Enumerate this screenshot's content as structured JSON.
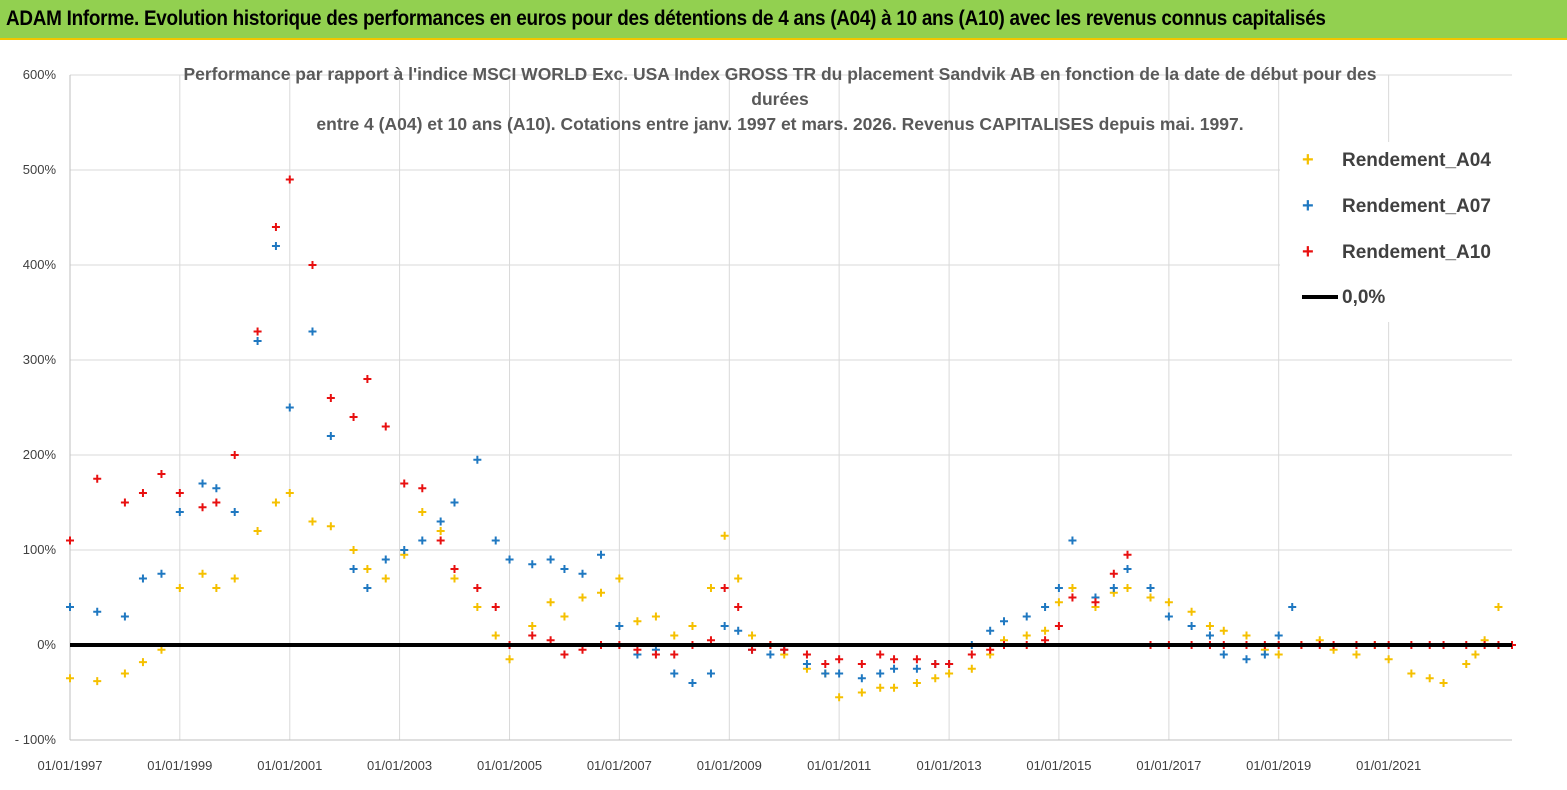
{
  "banner": {
    "title": "ADAM Informe. Evolution historique des performances en euros pour des détentions de 4 ans (A04) à 10 ans (A10) avec les revenus connus capitalisés"
  },
  "chart_data": {
    "type": "scatter",
    "title_lines": [
      "Performance par rapport à l'indice MSCI WORLD Exc. USA Index GROSS TR  du placement Sandvik AB en fonction de la date de début pour des",
      "durées",
      "entre 4 (A04) et 10 ans (A10). Cotations entre janv. 1997 et mars. 2026. Revenus CAPITALISES depuis mai. 1997."
    ],
    "xlabel": "",
    "ylabel": "",
    "x_tick_labels": [
      "01/01/1997",
      "01/01/1999",
      "01/01/2001",
      "01/01/2003",
      "01/01/2005",
      "01/01/2007",
      "01/01/2009",
      "01/01/2011",
      "01/01/2013",
      "01/01/2015",
      "01/01/2017",
      "01/01/2019",
      "01/01/2021"
    ],
    "x_range": [
      "1997-01-01",
      "2023-04-01"
    ],
    "y_tick_labels": [
      "- 100%",
      "0%",
      "100%",
      "200%",
      "300%",
      "400%",
      "500%",
      "600%"
    ],
    "ylim": [
      -100,
      600
    ],
    "y_unit": "%",
    "grid": true,
    "legend_position": "right",
    "series": [
      {
        "name": "Rendement_A04",
        "color": "#f5c000",
        "marker": "+",
        "x": [
          "1997-01",
          "1997-07",
          "1998-01",
          "1998-05",
          "1998-09",
          "1999-01",
          "1999-06",
          "1999-09",
          "2000-01",
          "2000-06",
          "2000-10",
          "2001-01",
          "2001-06",
          "2001-10",
          "2002-03",
          "2002-06",
          "2002-10",
          "2003-02",
          "2003-06",
          "2003-10",
          "2004-01",
          "2004-06",
          "2004-10",
          "2005-01",
          "2005-06",
          "2005-10",
          "2006-01",
          "2006-05",
          "2006-09",
          "2007-01",
          "2007-05",
          "2007-09",
          "2008-01",
          "2008-05",
          "2008-09",
          "2008-12",
          "2009-03",
          "2009-06",
          "2009-10",
          "2010-01",
          "2010-06",
          "2010-10",
          "2011-01",
          "2011-06",
          "2011-10",
          "2012-01",
          "2012-06",
          "2012-10",
          "2013-01",
          "2013-06",
          "2013-10",
          "2014-01",
          "2014-06",
          "2014-10",
          "2015-01",
          "2015-04",
          "2015-09",
          "2016-01",
          "2016-04",
          "2016-09",
          "2017-01",
          "2017-06",
          "2017-10",
          "2018-01",
          "2018-06",
          "2018-10",
          "2019-01",
          "2019-06",
          "2019-10",
          "2020-01",
          "2020-06",
          "2020-10",
          "2021-01",
          "2021-06",
          "2021-10",
          "2022-01",
          "2022-06",
          "2022-08",
          "2022-10",
          "2023-01",
          "2023-04"
        ],
        "y": [
          -35,
          -38,
          -30,
          -18,
          -5,
          60,
          75,
          60,
          70,
          120,
          150,
          160,
          130,
          125,
          100,
          80,
          70,
          95,
          140,
          120,
          70,
          40,
          10,
          -15,
          20,
          45,
          30,
          50,
          55,
          70,
          25,
          30,
          10,
          20,
          60,
          115,
          70,
          10,
          0,
          -10,
          -25,
          -30,
          -55,
          -50,
          -45,
          -45,
          -40,
          -35,
          -30,
          -25,
          -10,
          5,
          10,
          15,
          45,
          60,
          40,
          55,
          60,
          50,
          45,
          35,
          20,
          15,
          10,
          -5,
          -10,
          0,
          5,
          -5,
          -10,
          0,
          -15,
          -30,
          -35,
          -40,
          -20,
          -10,
          5,
          40,
          0
        ]
      },
      {
        "name": "Rendement_A07",
        "color": "#1f78c1",
        "marker": "+",
        "x": [
          "1997-01",
          "1997-07",
          "1998-01",
          "1998-05",
          "1998-09",
          "1999-01",
          "1999-06",
          "1999-09",
          "2000-01",
          "2000-06",
          "2000-10",
          "2001-01",
          "2001-06",
          "2001-10",
          "2002-03",
          "2002-06",
          "2002-10",
          "2003-02",
          "2003-06",
          "2003-10",
          "2004-01",
          "2004-06",
          "2004-10",
          "2005-01",
          "2005-06",
          "2005-10",
          "2006-01",
          "2006-05",
          "2006-09",
          "2007-01",
          "2007-05",
          "2007-09",
          "2008-01",
          "2008-05",
          "2008-09",
          "2008-12",
          "2009-03",
          "2009-06",
          "2009-10",
          "2010-01",
          "2010-06",
          "2010-10",
          "2011-01",
          "2011-06",
          "2011-10",
          "2012-01",
          "2012-06",
          "2012-10",
          "2013-01",
          "2013-06",
          "2013-10",
          "2014-01",
          "2014-06",
          "2014-10",
          "2015-01",
          "2015-04",
          "2015-09",
          "2016-01",
          "2016-04",
          "2016-09",
          "2017-01",
          "2017-06",
          "2017-10",
          "2018-01",
          "2018-06",
          "2018-10",
          "2019-01",
          "2019-04"
        ],
        "y": [
          40,
          35,
          30,
          70,
          75,
          140,
          170,
          165,
          140,
          320,
          420,
          250,
          330,
          220,
          80,
          60,
          90,
          100,
          110,
          130,
          150,
          195,
          110,
          90,
          85,
          90,
          80,
          75,
          95,
          20,
          -10,
          -5,
          -30,
          -40,
          -30,
          20,
          15,
          -5,
          -10,
          -5,
          -20,
          -30,
          -30,
          -35,
          -30,
          -25,
          -25,
          -20,
          -20,
          0,
          15,
          25,
          30,
          40,
          60,
          110,
          50,
          60,
          80,
          60,
          30,
          20,
          10,
          -10,
          -15,
          -10,
          10,
          40
        ]
      },
      {
        "name": "Rendement_A10",
        "color": "#e81010",
        "marker": "+",
        "x": [
          "1997-01",
          "1997-07",
          "1998-01",
          "1998-05",
          "1998-09",
          "1999-01",
          "1999-06",
          "1999-09",
          "2000-01",
          "2000-06",
          "2000-10",
          "2001-01",
          "2001-06",
          "2001-10",
          "2002-03",
          "2002-06",
          "2002-10",
          "2003-02",
          "2003-06",
          "2003-10",
          "2004-01",
          "2004-06",
          "2004-10",
          "2005-01",
          "2005-06",
          "2005-10",
          "2006-01",
          "2006-05",
          "2006-09",
          "2007-01",
          "2007-05",
          "2007-09",
          "2008-01",
          "2008-05",
          "2008-09",
          "2008-12",
          "2009-03",
          "2009-06",
          "2009-10",
          "2010-01",
          "2010-06",
          "2010-10",
          "2011-01",
          "2011-06",
          "2011-10",
          "2012-01",
          "2012-06",
          "2012-10",
          "2013-01",
          "2013-06",
          "2013-10",
          "2014-01",
          "2014-06",
          "2014-10",
          "2015-01",
          "2015-04",
          "2015-09",
          "2016-01",
          "2016-04",
          "2016-09",
          "2017-01",
          "2017-06",
          "2017-10",
          "2018-01",
          "2018-06",
          "2018-10",
          "2019-01",
          "2019-06",
          "2019-10",
          "2020-01",
          "2020-06",
          "2020-10",
          "2021-01",
          "2021-06",
          "2021-10",
          "2022-01",
          "2022-06",
          "2022-10",
          "2023-01",
          "2023-04"
        ],
        "y": [
          110,
          175,
          150,
          160,
          180,
          160,
          145,
          150,
          200,
          330,
          440,
          490,
          400,
          260,
          240,
          280,
          230,
          170,
          165,
          110,
          80,
          60,
          40,
          0,
          10,
          5,
          -10,
          -5,
          0,
          0,
          -5,
          -10,
          -10,
          0,
          5,
          60,
          40,
          -5,
          0,
          -5,
          -10,
          -20,
          -15,
          -20,
          -10,
          -15,
          -15,
          -20,
          -20,
          -10,
          -5,
          0,
          0,
          5,
          20,
          50,
          45,
          75,
          95,
          0,
          0,
          0,
          0,
          0,
          0,
          0,
          0,
          0,
          0,
          0,
          0,
          0,
          0,
          0,
          0,
          0,
          0,
          0,
          0,
          0
        ]
      },
      {
        "name": "0,0%",
        "color": "#000000",
        "marker": "line",
        "x": [
          "1997-01-01",
          "2023-04-01"
        ],
        "y": [
          0,
          0
        ]
      }
    ]
  }
}
